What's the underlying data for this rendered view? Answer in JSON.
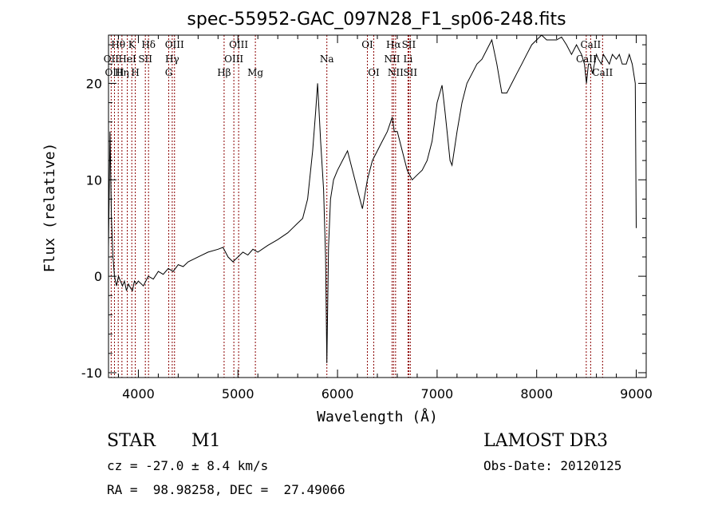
{
  "chart_data": {
    "type": "line",
    "title": "spec-55952-GAC_097N28_F1_sp06-248.fits",
    "xlabel": "Wavelength (Å)",
    "ylabel": "Flux (relative)",
    "xlim": [
      3700,
      9100
    ],
    "ylim": [
      -10.5,
      25
    ],
    "xticks": [
      4000,
      5000,
      6000,
      7000,
      8000,
      9000
    ],
    "yticks": [
      -10,
      0,
      10,
      20
    ],
    "grid": false,
    "line_color": "#000000",
    "marker_color": "#8b0000",
    "spectral_lines": [
      {
        "label": "Hθ",
        "wavelength": 3798,
        "row": 0
      },
      {
        "label": "OII",
        "wavelength": 3727,
        "row": 1
      },
      {
        "label": "OIII",
        "wavelength": 3760,
        "row": 2
      },
      {
        "label": "Hη",
        "wavelength": 3835,
        "row": 2
      },
      {
        "label": "K",
        "wavelength": 3934,
        "row": 0
      },
      {
        "label": "HeI",
        "wavelength": 3889,
        "row": 1
      },
      {
        "label": "H",
        "wavelength": 3969,
        "row": 2
      },
      {
        "label": "SII",
        "wavelength": 4070,
        "row": 1
      },
      {
        "label": "Hδ",
        "wavelength": 4102,
        "row": 0
      },
      {
        "label": "OIII",
        "wavelength": 4363,
        "row": 0
      },
      {
        "label": "Hγ",
        "wavelength": 4340,
        "row": 1
      },
      {
        "label": "G",
        "wavelength": 4305,
        "row": 2
      },
      {
        "label": "Hβ",
        "wavelength": 4861,
        "row": 2
      },
      {
        "label": "OIII",
        "wavelength": 5007,
        "row": 0
      },
      {
        "label": "OIII",
        "wavelength": 4959,
        "row": 1
      },
      {
        "label": "Mg",
        "wavelength": 5175,
        "row": 2
      },
      {
        "label": "Na",
        "wavelength": 5893,
        "row": 1
      },
      {
        "label": "OI",
        "wavelength": 6300,
        "row": 0
      },
      {
        "label": "OI",
        "wavelength": 6364,
        "row": 2
      },
      {
        "label": "Hα",
        "wavelength": 6563,
        "row": 0
      },
      {
        "label": "SII",
        "wavelength": 6716,
        "row": 0
      },
      {
        "label": "NII",
        "wavelength": 6548,
        "row": 1
      },
      {
        "label": "Li",
        "wavelength": 6708,
        "row": 1
      },
      {
        "label": "NII",
        "wavelength": 6583,
        "row": 2
      },
      {
        "label": "SII",
        "wavelength": 6731,
        "row": 2
      },
      {
        "label": "CaII",
        "wavelength": 8542,
        "row": 0
      },
      {
        "label": "CaII",
        "wavelength": 8498,
        "row": 1
      },
      {
        "label": "CaII",
        "wavelength": 8662,
        "row": 2
      }
    ],
    "series": [
      {
        "x": [
          3700,
          3715,
          3730,
          3745,
          3760,
          3780,
          3800,
          3820,
          3840,
          3860,
          3880,
          3900,
          3920,
          3940,
          3960,
          3980,
          4000,
          4050,
          4100,
          4150,
          4200,
          4250,
          4300,
          4350,
          4400,
          4450,
          4500,
          4600,
          4700,
          4800,
          4850,
          4900,
          4950,
          5000,
          5050,
          5100,
          5150,
          5200,
          5300,
          5400,
          5500,
          5550,
          5600,
          5650,
          5700,
          5750,
          5780,
          5800,
          5830,
          5860,
          5880,
          5893,
          5910,
          5930,
          5960,
          6000,
          6050,
          6100,
          6150,
          6200,
          6250,
          6300,
          6350,
          6400,
          6450,
          6500,
          6550,
          6570,
          6600,
          6650,
          6700,
          6750,
          6800,
          6850,
          6900,
          6950,
          7000,
          7050,
          7080,
          7100,
          7130,
          7150,
          7200,
          7250,
          7300,
          7350,
          7400,
          7450,
          7500,
          7550,
          7600,
          7650,
          7700,
          7750,
          7800,
          7850,
          7900,
          7950,
          8000,
          8050,
          8100,
          8150,
          8200,
          8250,
          8300,
          8350,
          8400,
          8450,
          8480,
          8500,
          8520,
          8540,
          8560,
          8580,
          8600,
          8620,
          8650,
          8670,
          8700,
          8730,
          8760,
          8800,
          8830,
          8860,
          8900,
          8930,
          8960,
          8990,
          9000
        ],
        "values": [
          3,
          15,
          6,
          2,
          0,
          -1,
          0,
          -0.5,
          -1,
          -0.5,
          -1.5,
          -0.8,
          -1.2,
          -1.5,
          -0.5,
          -0.8,
          -0.5,
          -1,
          0,
          -0.3,
          0.5,
          0.2,
          0.8,
          0.5,
          1.2,
          1,
          1.5,
          2,
          2.5,
          2.8,
          3,
          2,
          1.5,
          2,
          2.5,
          2.2,
          2.8,
          2.5,
          3.2,
          3.8,
          4.5,
          5,
          5.5,
          6,
          8,
          13,
          17,
          20,
          14,
          9,
          2,
          -9,
          3,
          8,
          10,
          11,
          12,
          13,
          11,
          9,
          7,
          10,
          12,
          13,
          14,
          15,
          16.5,
          15,
          15,
          13,
          11,
          10,
          10.5,
          11,
          12,
          14,
          18,
          19.8,
          17,
          15,
          12,
          11.5,
          15,
          18,
          20,
          21,
          22,
          22.5,
          23.5,
          24.5,
          22,
          19,
          19,
          20,
          21,
          22,
          23,
          24,
          24.5,
          25,
          24.5,
          24.5,
          24.5,
          24.8,
          24,
          23,
          24,
          23,
          22,
          20,
          22,
          22,
          21,
          22,
          23,
          22.5,
          22,
          23,
          22.5,
          22,
          23,
          22.5,
          23,
          22,
          22,
          23,
          22,
          20,
          5
        ]
      }
    ]
  },
  "footer": {
    "object_type": "STAR",
    "subclass": "M1",
    "survey": "LAMOST DR3",
    "redshift": "cz = -27.0 ± 8.4 km/s",
    "obs_date": "Obs-Date: 20120125",
    "coordinates": "RA =  98.98258, DEC =  27.49066"
  }
}
